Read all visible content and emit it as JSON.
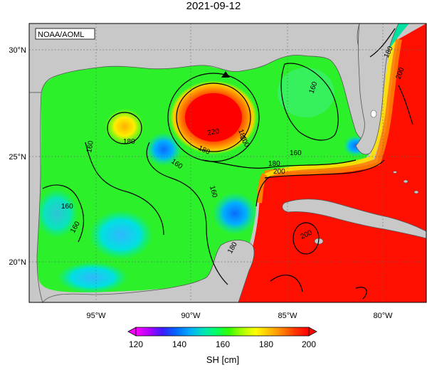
{
  "title": "2021-09-12",
  "agency_label": "NOAA/AOML",
  "lat_labels": [
    "30°N",
    "25°N",
    "20°N"
  ],
  "lon_labels": [
    "95°W",
    "90°W",
    "85°W",
    "80°W"
  ],
  "contour_labels": [
    "160",
    "160",
    "160",
    "160",
    "160",
    "160",
    "180",
    "180",
    "180",
    "180",
    "200",
    "200",
    "200",
    "220",
    "180",
    "160",
    "180",
    "200"
  ],
  "colorbar": {
    "title": "SH [cm]",
    "ticks": [
      "120",
      "140",
      "160",
      "180",
      "200"
    ],
    "min": 120,
    "max": 200,
    "colors": [
      "#ff00ff",
      "#b000ff",
      "#3a1cff",
      "#0066ff",
      "#00a8ff",
      "#00e0c0",
      "#00ff66",
      "#33ff00",
      "#aaff00",
      "#ffff00",
      "#ffc000",
      "#ff8000",
      "#ff3300",
      "#ff0000"
    ]
  },
  "marker": "triangle-marker"
}
